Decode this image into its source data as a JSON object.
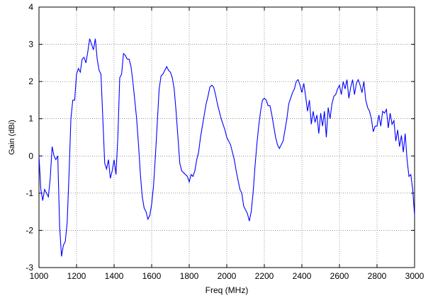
{
  "chart_data": {
    "type": "line",
    "xlabel": "Freq (MHz)",
    "ylabel": "Gain (dBi)",
    "x": [
      1000,
      1010,
      1020,
      1030,
      1040,
      1050,
      1060,
      1070,
      1080,
      1090,
      1100,
      1110,
      1120,
      1130,
      1140,
      1150,
      1160,
      1170,
      1180,
      1190,
      1200,
      1210,
      1220,
      1230,
      1240,
      1250,
      1260,
      1270,
      1280,
      1290,
      1300,
      1310,
      1320,
      1330,
      1340,
      1350,
      1360,
      1370,
      1380,
      1390,
      1400,
      1410,
      1420,
      1430,
      1440,
      1450,
      1460,
      1470,
      1480,
      1490,
      1500,
      1510,
      1520,
      1530,
      1540,
      1550,
      1560,
      1570,
      1580,
      1590,
      1600,
      1610,
      1620,
      1630,
      1640,
      1650,
      1660,
      1670,
      1680,
      1690,
      1700,
      1710,
      1720,
      1730,
      1740,
      1750,
      1760,
      1770,
      1780,
      1790,
      1800,
      1810,
      1820,
      1830,
      1840,
      1850,
      1860,
      1870,
      1880,
      1890,
      1900,
      1910,
      1920,
      1930,
      1940,
      1950,
      1960,
      1970,
      1980,
      1990,
      2000,
      2010,
      2020,
      2030,
      2040,
      2050,
      2060,
      2070,
      2080,
      2090,
      2100,
      2110,
      2120,
      2130,
      2140,
      2150,
      2160,
      2170,
      2180,
      2190,
      2200,
      2210,
      2220,
      2230,
      2240,
      2250,
      2260,
      2270,
      2280,
      2290,
      2300,
      2310,
      2320,
      2330,
      2340,
      2350,
      2360,
      2370,
      2380,
      2390,
      2400,
      2410,
      2420,
      2430,
      2440,
      2450,
      2460,
      2470,
      2480,
      2490,
      2500,
      2510,
      2520,
      2530,
      2540,
      2550,
      2560,
      2570,
      2580,
      2590,
      2600,
      2610,
      2620,
      2630,
      2640,
      2650,
      2660,
      2670,
      2680,
      2690,
      2700,
      2710,
      2720,
      2730,
      2740,
      2750,
      2760,
      2770,
      2780,
      2790,
      2800,
      2810,
      2820,
      2830,
      2840,
      2850,
      2860,
      2870,
      2880,
      2890,
      2900,
      2910,
      2920,
      2930,
      2940,
      2950,
      2960,
      2970,
      2980,
      2990,
      3000
    ],
    "values": [
      0.0,
      -0.9,
      -1.2,
      -0.9,
      -1.0,
      -1.1,
      -0.6,
      0.25,
      0.0,
      -0.1,
      0.0,
      -1.9,
      -2.7,
      -2.4,
      -2.3,
      -1.8,
      -0.5,
      1.0,
      1.5,
      1.5,
      2.2,
      2.35,
      2.25,
      2.6,
      2.65,
      2.5,
      2.8,
      3.15,
      3.0,
      2.85,
      3.15,
      2.6,
      2.3,
      2.2,
      1.0,
      -0.2,
      -0.35,
      -0.1,
      -0.6,
      -0.4,
      -0.1,
      -0.5,
      0.5,
      2.1,
      2.2,
      2.75,
      2.7,
      2.6,
      2.6,
      2.4,
      2.0,
      1.5,
      1.0,
      0.3,
      -0.5,
      -1.1,
      -1.4,
      -1.5,
      -1.7,
      -1.6,
      -1.3,
      -0.8,
      0.0,
      0.9,
      1.8,
      2.15,
      2.2,
      2.3,
      2.4,
      2.3,
      2.25,
      2.1,
      1.8,
      1.2,
      0.5,
      -0.2,
      -0.4,
      -0.45,
      -0.5,
      -0.55,
      -0.7,
      -0.5,
      -0.55,
      -0.4,
      -0.1,
      0.1,
      0.5,
      0.8,
      1.1,
      1.4,
      1.6,
      1.85,
      1.9,
      1.85,
      1.65,
      1.4,
      1.2,
      1.0,
      0.85,
      0.7,
      0.5,
      0.4,
      0.3,
      0.1,
      -0.1,
      -0.4,
      -0.65,
      -0.9,
      -1.0,
      -1.35,
      -1.45,
      -1.55,
      -1.75,
      -1.5,
      -1.0,
      -0.3,
      0.3,
      0.8,
      1.2,
      1.5,
      1.55,
      1.5,
      1.35,
      1.35,
      1.1,
      0.8,
      0.5,
      0.3,
      0.2,
      0.3,
      0.4,
      0.7,
      1.0,
      1.4,
      1.55,
      1.7,
      1.8,
      2.0,
      2.05,
      1.9,
      1.7,
      1.95,
      1.6,
      1.2,
      1.5,
      0.85,
      1.2,
      0.9,
      1.1,
      0.6,
      1.15,
      0.8,
      1.2,
      0.5,
      1.3,
      1.0,
      1.4,
      1.6,
      1.65,
      1.8,
      1.9,
      1.65,
      2.0,
      1.8,
      2.05,
      1.55,
      1.85,
      2.05,
      1.65,
      1.95,
      2.05,
      1.9,
      1.7,
      2.0,
      1.5,
      1.3,
      1.2,
      1.0,
      0.65,
      0.8,
      0.8,
      1.1,
      0.8,
      1.2,
      1.15,
      1.25,
      0.75,
      1.15,
      0.85,
      0.95,
      0.4,
      0.7,
      0.25,
      0.55,
      0.1,
      0.6,
      -0.1,
      -0.55,
      -0.5,
      -0.9,
      -1.6
    ],
    "color": "#0000ff",
    "xlim": [
      1000,
      3000
    ],
    "xticks": [
      1000,
      1200,
      1400,
      1600,
      1800,
      2000,
      2200,
      2400,
      2600,
      2800,
      3000
    ],
    "ylim": [
      -3,
      4
    ],
    "yticks": [
      -3,
      -2,
      -1,
      0,
      1,
      2,
      3,
      4
    ],
    "grid": true
  }
}
